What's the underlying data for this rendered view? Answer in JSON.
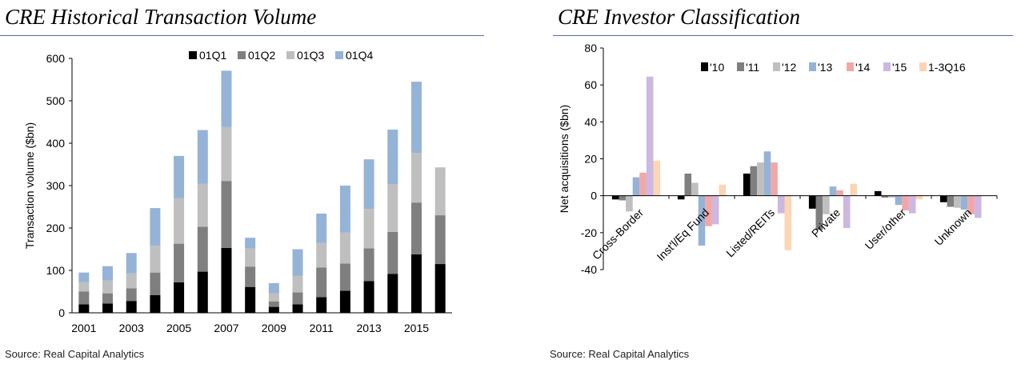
{
  "chart_data": [
    {
      "type": "bar",
      "stacked": true,
      "title": "CRE Historical Transaction Volume",
      "ylabel": "Transaction volume ($bn)",
      "xlabel": "",
      "ylim": [
        0,
        600
      ],
      "yticks": [
        0,
        100,
        200,
        300,
        400,
        500,
        600
      ],
      "categories": [
        "2001",
        "2002",
        "2003",
        "2004",
        "2005",
        "2006",
        "2007",
        "2008",
        "2009",
        "2010",
        "2011",
        "2012",
        "2013",
        "2014",
        "2015",
        "2016"
      ],
      "xtick_labels": [
        "2001",
        "2003",
        "2005",
        "2007",
        "2009",
        "2011",
        "2013",
        "2015"
      ],
      "legend_position": "top",
      "series": [
        {
          "name": "01Q1",
          "color": "#000000",
          "values": [
            20,
            22,
            28,
            42,
            72,
            97,
            153,
            61,
            14,
            20,
            37,
            52,
            75,
            92,
            138,
            115
          ]
        },
        {
          "name": "01Q2",
          "color": "#7f7f7f",
          "values": [
            30,
            24,
            30,
            53,
            91,
            106,
            158,
            48,
            13,
            28,
            70,
            64,
            77,
            99,
            122,
            115
          ]
        },
        {
          "name": "01Q3",
          "color": "#bfbfbf",
          "values": [
            22,
            30,
            35,
            63,
            107,
            101,
            127,
            43,
            19,
            39,
            58,
            73,
            93,
            112,
            117,
            113
          ]
        },
        {
          "name": "01Q4",
          "color": "#95b3d7",
          "values": [
            23,
            34,
            48,
            89,
            100,
            127,
            133,
            25,
            24,
            63,
            69,
            111,
            117,
            129,
            168,
            0
          ]
        }
      ],
      "source": "Source: Real Capital Analytics"
    },
    {
      "type": "bar",
      "stacked": false,
      "title": "CRE Investor Classification",
      "ylabel": "Net acquisitions ($bn)",
      "xlabel": "",
      "ylim": [
        -40,
        80
      ],
      "yticks": [
        -40,
        -20,
        0,
        20,
        40,
        60,
        80
      ],
      "categories": [
        "Cross-Border",
        "Inst'l/Eq Fund",
        "Listed/REITs",
        "Private",
        "User/other",
        "Unknown"
      ],
      "legend_position": "top",
      "series": [
        {
          "name": "'10",
          "color": "#000000",
          "values": [
            -2,
            -2,
            12,
            -7,
            2.5,
            -3.5
          ]
        },
        {
          "name": "'11",
          "color": "#7f7f7f",
          "values": [
            -2.5,
            12,
            16,
            -18.5,
            -1,
            -6
          ]
        },
        {
          "name": "'12",
          "color": "#bfbfbf",
          "values": [
            -8.5,
            7,
            18,
            -10,
            -1,
            -6.5
          ]
        },
        {
          "name": "'13",
          "color": "#95b3d7",
          "values": [
            10,
            -27,
            24,
            5,
            -5,
            -7.5
          ]
        },
        {
          "name": "'14",
          "color": "#f2a7a7",
          "values": [
            12.5,
            -16.5,
            18,
            3,
            -8,
            -10
          ]
        },
        {
          "name": "'15",
          "color": "#ccb8e0",
          "values": [
            64.5,
            -15.5,
            -9.5,
            -17.5,
            -9.5,
            -12
          ]
        },
        {
          "name": "1-3Q16",
          "color": "#fcd5b4",
          "values": [
            19,
            6,
            -29.5,
            6.5,
            -2,
            0
          ]
        }
      ],
      "source": "Source: Real Capital Analytics"
    }
  ]
}
